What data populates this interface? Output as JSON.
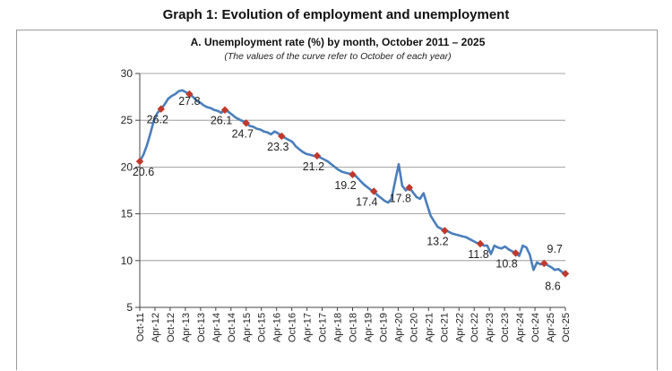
{
  "page": {
    "title": "Graph 1: Evolution of employment and unemployment"
  },
  "chart_data": {
    "type": "line",
    "title": "A. Unemployment rate (%) by month, October  2011 – 2025",
    "subtitle": "(The values of the curve refer to October of each year)",
    "xlabel": "",
    "ylabel": "",
    "ylim": [
      5,
      30
    ],
    "yticks": [
      5,
      10,
      15,
      20,
      25,
      30
    ],
    "xtick_labels": [
      "Oct-11",
      "Apr-12",
      "Oct-12",
      "Apr-13",
      "Oct-13",
      "Apr-14",
      "Oct-14",
      "Apr-15",
      "Oct-15",
      "Apr-16",
      "Oct-16",
      "Apr-17",
      "Oct-17",
      "Apr-18",
      "Oct-18",
      "Apr-19",
      "Oct-19",
      "Apr-20",
      "Oct-20",
      "Apr-21",
      "Oct-21",
      "Apr-22",
      "Oct-22",
      "Apr-23",
      "Oct-23",
      "Apr-24",
      "Oct-24",
      "Apr-25",
      "Oct-25"
    ],
    "grid": true,
    "line_color": "#4a7ebb",
    "marker_color": "#c0392b",
    "series": [
      {
        "name": "Unemployment rate (%)",
        "points": [
          [
            0,
            20.6
          ],
          [
            0.5,
            21.3
          ],
          [
            1,
            22.3
          ],
          [
            1.5,
            23.6
          ],
          [
            2,
            25.0
          ],
          [
            2.5,
            25.8
          ],
          [
            3,
            26.2
          ],
          [
            3.5,
            26.7
          ],
          [
            4,
            27.3
          ],
          [
            4.5,
            27.6
          ],
          [
            5,
            27.8
          ],
          [
            5.5,
            28.1
          ],
          [
            6,
            28.2
          ],
          [
            6.5,
            28.0
          ],
          [
            7,
            27.8
          ],
          [
            7.5,
            27.5
          ],
          [
            8,
            27.1
          ],
          [
            8.5,
            26.9
          ],
          [
            9,
            26.6
          ],
          [
            9.5,
            26.4
          ],
          [
            10,
            26.3
          ],
          [
            10.5,
            26.1
          ],
          [
            11,
            26.0
          ],
          [
            11.5,
            25.8
          ],
          [
            12,
            26.1
          ],
          [
            12.5,
            25.9
          ],
          [
            13,
            25.6
          ],
          [
            13.5,
            25.3
          ],
          [
            14,
            25.1
          ],
          [
            14.5,
            24.9
          ],
          [
            15,
            24.7
          ],
          [
            15.5,
            24.4
          ],
          [
            16,
            24.3
          ],
          [
            16.5,
            24.1
          ],
          [
            17,
            24.0
          ],
          [
            17.5,
            23.8
          ],
          [
            18,
            23.7
          ],
          [
            18.5,
            23.5
          ],
          [
            19,
            23.8
          ],
          [
            19.5,
            23.6
          ],
          [
            20,
            23.3
          ],
          [
            20.5,
            23.1
          ],
          [
            21,
            22.9
          ],
          [
            21.5,
            22.7
          ],
          [
            22,
            22.2
          ],
          [
            22.5,
            21.9
          ],
          [
            23,
            21.6
          ],
          [
            23.5,
            21.4
          ],
          [
            24,
            21.3
          ],
          [
            24.5,
            21.2
          ],
          [
            25,
            21.2
          ],
          [
            25.5,
            21.0
          ],
          [
            26,
            20.8
          ],
          [
            26.5,
            20.6
          ],
          [
            27,
            20.3
          ],
          [
            27.5,
            20.0
          ],
          [
            28,
            19.7
          ],
          [
            28.5,
            19.5
          ],
          [
            29,
            19.4
          ],
          [
            29.5,
            19.3
          ],
          [
            30,
            19.2
          ],
          [
            30.5,
            19.0
          ],
          [
            31,
            18.6
          ],
          [
            31.5,
            18.2
          ],
          [
            32,
            17.9
          ],
          [
            32.5,
            17.6
          ],
          [
            33,
            17.4
          ],
          [
            33.5,
            17.0
          ],
          [
            34,
            16.7
          ],
          [
            34.5,
            16.4
          ],
          [
            35,
            16.2
          ],
          [
            35.5,
            16.6
          ],
          [
            36,
            18.5
          ],
          [
            36.5,
            20.3
          ],
          [
            37,
            18.0
          ],
          [
            37.5,
            17.5
          ],
          [
            38,
            17.8
          ],
          [
            38.5,
            17.3
          ],
          [
            39,
            16.8
          ],
          [
            39.5,
            16.6
          ],
          [
            40,
            17.2
          ],
          [
            40.5,
            16.0
          ],
          [
            41,
            14.8
          ],
          [
            41.5,
            14.2
          ],
          [
            42,
            13.6
          ],
          [
            42.5,
            13.4
          ],
          [
            43,
            13.2
          ],
          [
            43.5,
            13.1
          ],
          [
            44,
            12.9
          ],
          [
            44.5,
            12.8
          ],
          [
            45,
            12.7
          ],
          [
            45.5,
            12.6
          ],
          [
            46,
            12.5
          ],
          [
            46.5,
            12.3
          ],
          [
            47,
            12.1
          ],
          [
            47.5,
            11.9
          ],
          [
            48,
            11.8
          ],
          [
            48.5,
            11.6
          ],
          [
            49,
            11.6
          ],
          [
            49.5,
            10.7
          ],
          [
            50,
            11.6
          ],
          [
            50.5,
            11.4
          ],
          [
            51,
            11.3
          ],
          [
            51.5,
            11.5
          ],
          [
            52,
            11.2
          ],
          [
            52.5,
            11.0
          ],
          [
            53,
            10.8
          ],
          [
            53.5,
            10.5
          ],
          [
            54,
            11.6
          ],
          [
            54.5,
            11.4
          ],
          [
            55,
            10.6
          ],
          [
            55.5,
            9.0
          ],
          [
            56,
            9.8
          ],
          [
            56.5,
            9.6
          ],
          [
            57,
            9.7
          ],
          [
            57.5,
            9.5
          ],
          [
            58,
            9.3
          ],
          [
            58.5,
            9.0
          ],
          [
            59,
            9.1
          ],
          [
            59.5,
            8.8
          ],
          [
            60,
            8.6
          ]
        ]
      }
    ],
    "annotations": [
      {
        "label": "20.6",
        "x": 0,
        "y": 20.6
      },
      {
        "label": "26.2",
        "x": 3,
        "y": 26.2
      },
      {
        "label": "27.8",
        "x": 7,
        "y": 27.8
      },
      {
        "label": "26.1",
        "x": 12,
        "y": 26.1
      },
      {
        "label": "24.7",
        "x": 15,
        "y": 24.7
      },
      {
        "label": "23.3",
        "x": 20,
        "y": 23.3
      },
      {
        "label": "21.2",
        "x": 25,
        "y": 21.2
      },
      {
        "label": "19.2",
        "x": 30,
        "y": 19.2
      },
      {
        "label": "17.4",
        "x": 33,
        "y": 17.4
      },
      {
        "label": "17.8",
        "x": 38,
        "y": 17.8
      },
      {
        "label": "13.2",
        "x": 43,
        "y": 13.2
      },
      {
        "label": "11.8",
        "x": 48,
        "y": 11.8
      },
      {
        "label": "10.8",
        "x": 53,
        "y": 10.8
      },
      {
        "label": "9.7",
        "x": 57,
        "y": 9.7
      },
      {
        "label": "8.6",
        "x": 60,
        "y": 8.6
      }
    ]
  }
}
